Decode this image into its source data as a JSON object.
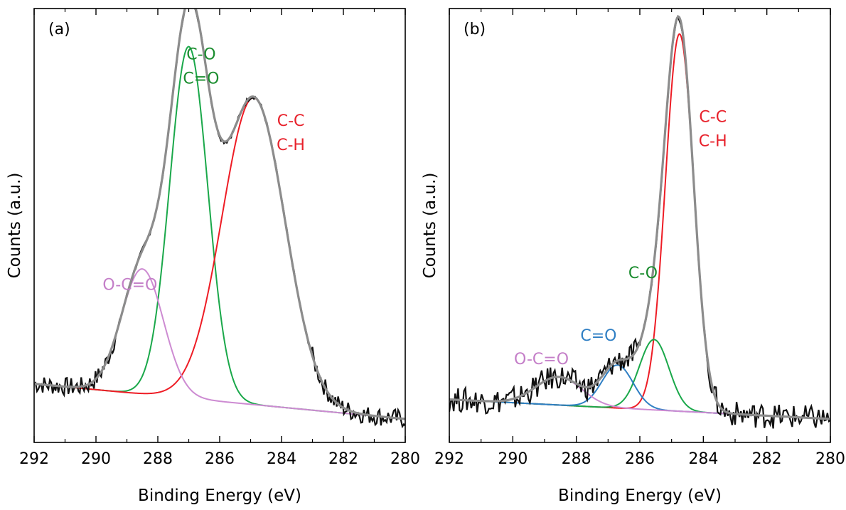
{
  "chart_data": [
    {
      "panel_label": "(a)",
      "type": "line",
      "xlabel": "Binding Energy (eV)",
      "ylabel": "Counts (a.u.)",
      "xlim": [
        292,
        280
      ],
      "x_reversed": true,
      "ylim": [
        -0.06,
        1.05
      ],
      "y_ticks_labeled": false,
      "xticks": [
        292,
        290,
        288,
        286,
        284,
        282,
        280
      ],
      "xtick_labels": [
        "292",
        "290",
        "288",
        "286",
        "284",
        "282",
        "280"
      ],
      "grid": false,
      "baseline": {
        "start": 0.09,
        "end": 0.0
      },
      "noise_amplitude": 0.006,
      "series": [
        {
          "color": "#1aa84a",
          "center": 287.0,
          "height": 0.9,
          "fwhm": 1.45
        },
        {
          "color": "#ee1c25",
          "center": 284.9,
          "height": 0.785,
          "fwhm": 2.4
        },
        {
          "color": "#cd8bd2",
          "center": 288.5,
          "height": 0.32,
          "fwhm": 1.6
        }
      ],
      "raw_color": "#111111",
      "envelope_color": "#8c8c8c",
      "annotations": [
        {
          "lines": [
            "C-O",
            "C=O"
          ],
          "color": "#1a8c2e",
          "x": 286.6,
          "y": 0.92
        },
        {
          "lines": [
            "C-C",
            "C-H"
          ],
          "color": "#e8212b",
          "x": 283.7,
          "y": 0.75
        },
        {
          "lines": [
            "O-C=O"
          ],
          "color": "#c47ec8",
          "x": 288.9,
          "y": 0.33
        }
      ]
    },
    {
      "panel_label": "(b)",
      "type": "line",
      "xlabel": "Binding Energy (eV)",
      "ylabel": "Counts (a.u.)",
      "xlim": [
        292,
        280
      ],
      "x_reversed": true,
      "ylim": [
        -0.06,
        1.05
      ],
      "y_ticks_labeled": false,
      "xticks": [
        292,
        290,
        288,
        286,
        284,
        282,
        280
      ],
      "xtick_labels": [
        "292",
        "290",
        "288",
        "286",
        "284",
        "282",
        "280"
      ],
      "grid": false,
      "baseline": {
        "start": 0.05,
        "end": 0.0
      },
      "noise_amplitude": 0.008,
      "series": [
        {
          "color": "#ee1c25",
          "center": 284.75,
          "height": 0.965,
          "fwhm": 1.05
        },
        {
          "color": "#1aa84a",
          "center": 285.55,
          "height": 0.18,
          "fwhm": 1.1
        },
        {
          "color": "#2f7fc4",
          "center": 286.7,
          "height": 0.11,
          "fwhm": 1.15
        },
        {
          "color": "#cd8bd2",
          "center": 288.55,
          "height": 0.072,
          "fwhm": 1.7
        }
      ],
      "raw_color": "#111111",
      "envelope_color": "#8c8c8c",
      "annotations": [
        {
          "lines": [
            "C-C",
            "C-H"
          ],
          "color": "#e8212b",
          "x": 283.7,
          "y": 0.76
        },
        {
          "lines": [
            "C-O"
          ],
          "color": "#1a8c2e",
          "x": 285.9,
          "y": 0.36
        },
        {
          "lines": [
            "C=O"
          ],
          "color": "#2f7fc4",
          "x": 287.3,
          "y": 0.2
        },
        {
          "lines": [
            "O-C=O"
          ],
          "color": "#c47ec8",
          "x": 289.1,
          "y": 0.14
        }
      ]
    }
  ]
}
